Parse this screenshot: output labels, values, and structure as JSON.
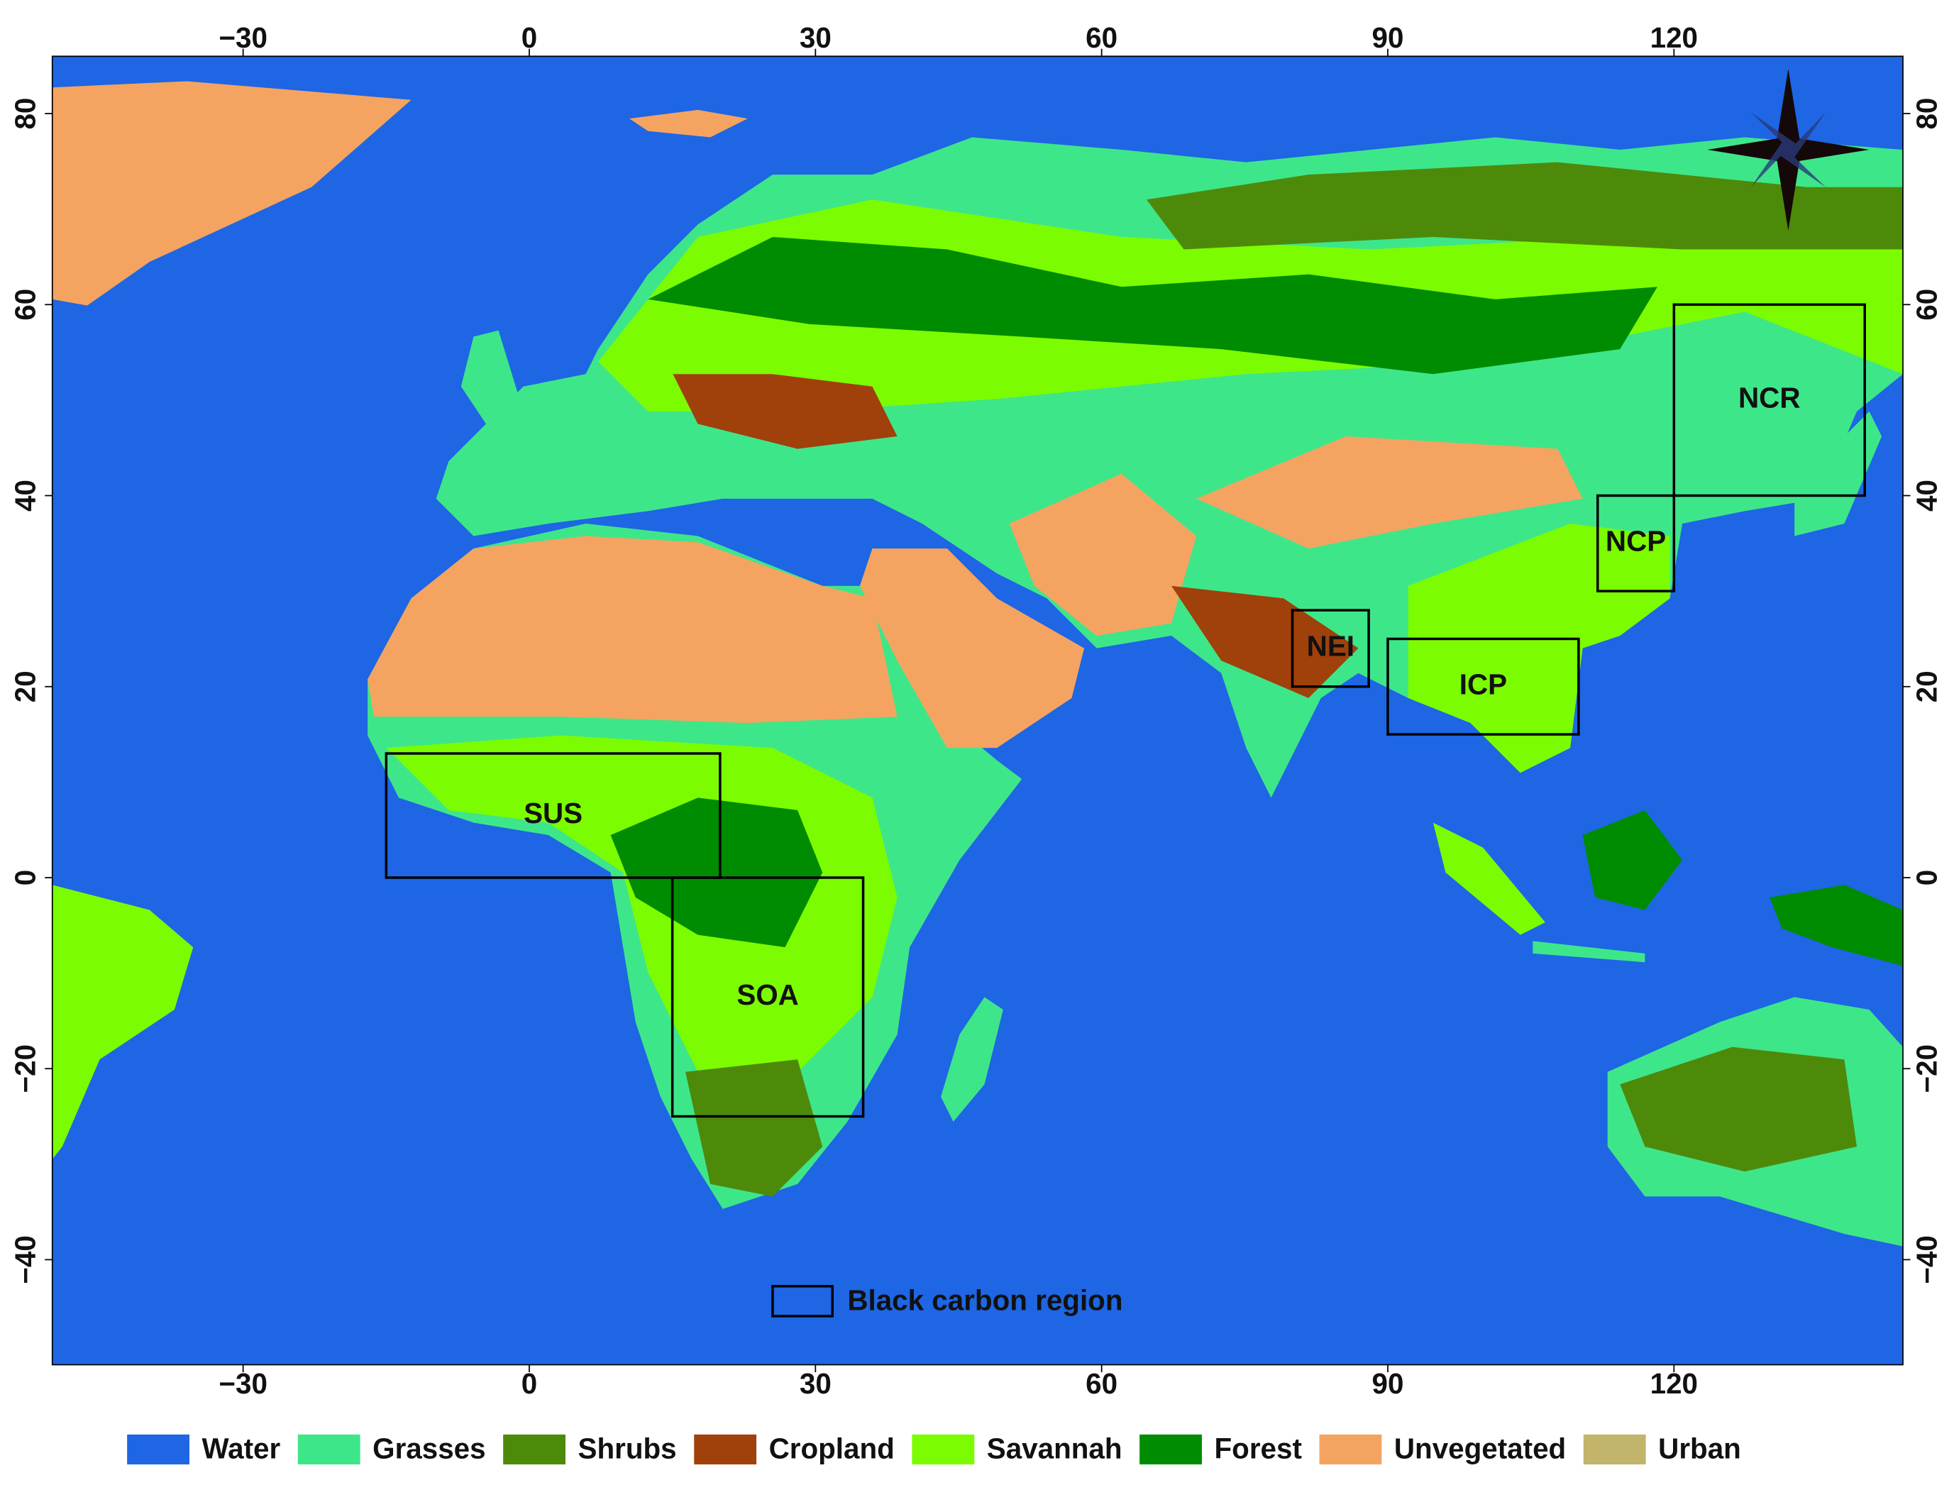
{
  "map": {
    "xaxis": {
      "lim": [
        -50,
        144
      ],
      "ticks": [
        {
          "value": -30,
          "label": "−30"
        },
        0,
        30,
        60,
        90,
        120
      ]
    },
    "yaxis": {
      "lim": [
        -51,
        86
      ],
      "ticks": [
        {
          "value": -40,
          "label": "−40"
        },
        {
          "value": -20,
          "label": "−20"
        },
        0,
        20,
        40,
        60,
        80
      ]
    },
    "regions": [
      {
        "label": "SUS",
        "lon": [
          -15,
          20
        ],
        "lat": [
          0,
          13
        ]
      },
      {
        "label": "SOA",
        "lon": [
          15,
          35
        ],
        "lat": [
          -25,
          0
        ]
      },
      {
        "label": "NEI",
        "lon": [
          80,
          88
        ],
        "lat": [
          20,
          28
        ]
      },
      {
        "label": "ICP",
        "lon": [
          90,
          110
        ],
        "lat": [
          15,
          25
        ]
      },
      {
        "label": "NCP",
        "lon": [
          112,
          120
        ],
        "lat": [
          30,
          40
        ]
      },
      {
        "label": "NCR",
        "lon": [
          120,
          140
        ],
        "lat": [
          40,
          60
        ]
      }
    ],
    "region_legend": "Black carbon region",
    "legend": [
      {
        "name": "Water",
        "color": "#1e66e4"
      },
      {
        "name": "Grasses",
        "color": "#3ee68a"
      },
      {
        "name": "Shrubs",
        "color": "#4e8a0a"
      },
      {
        "name": "Cropland",
        "color": "#a0400a"
      },
      {
        "name": "Savannah",
        "color": "#7cfc00"
      },
      {
        "name": "Forest",
        "color": "#008c00"
      },
      {
        "name": "Unvegetated",
        "color": "#f4a460"
      },
      {
        "name": "Urban",
        "color": "#c2b46a"
      }
    ]
  }
}
